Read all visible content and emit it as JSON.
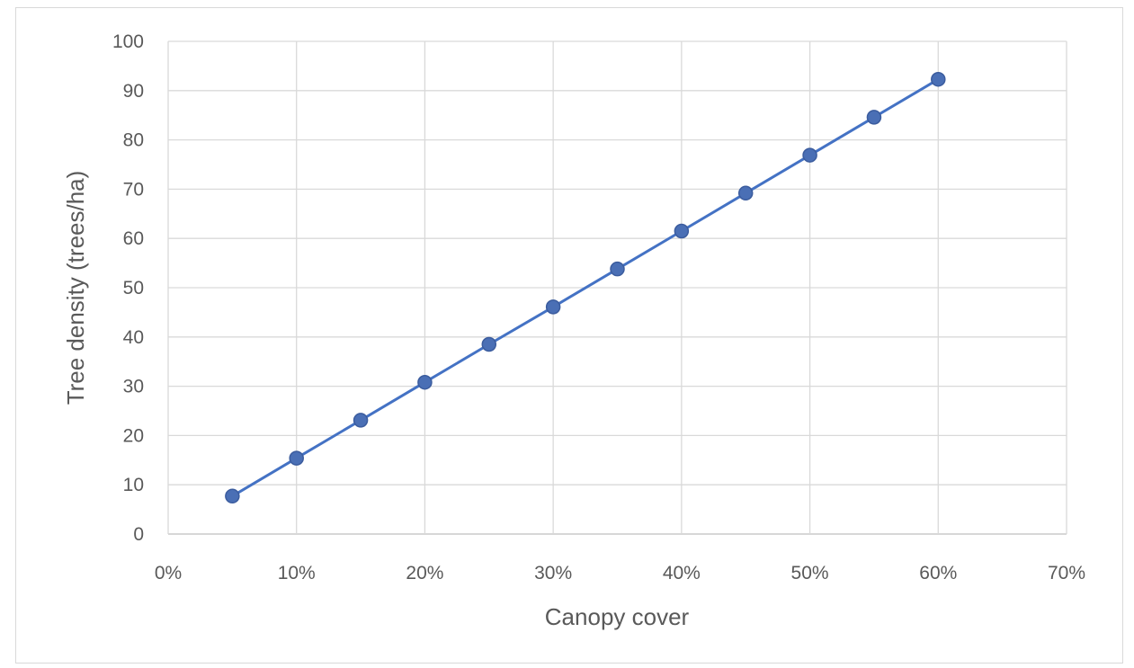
{
  "chart_data": {
    "type": "line",
    "title": "",
    "xlabel": "Canopy cover",
    "ylabel": "Tree density (trees/ha)",
    "xlim": [
      0,
      0.7
    ],
    "ylim": [
      0,
      100
    ],
    "x_ticks": [
      {
        "value": 0.0,
        "label": "0%"
      },
      {
        "value": 0.1,
        "label": "10%"
      },
      {
        "value": 0.2,
        "label": "20%"
      },
      {
        "value": 0.3,
        "label": "30%"
      },
      {
        "value": 0.4,
        "label": "40%"
      },
      {
        "value": 0.5,
        "label": "50%"
      },
      {
        "value": 0.6,
        "label": "60%"
      },
      {
        "value": 0.7,
        "label": "70%"
      }
    ],
    "y_ticks": [
      {
        "value": 0,
        "label": "0"
      },
      {
        "value": 10,
        "label": "10"
      },
      {
        "value": 20,
        "label": "20"
      },
      {
        "value": 30,
        "label": "30"
      },
      {
        "value": 40,
        "label": "40"
      },
      {
        "value": 50,
        "label": "50"
      },
      {
        "value": 60,
        "label": "60"
      },
      {
        "value": 70,
        "label": "70"
      },
      {
        "value": 80,
        "label": "80"
      },
      {
        "value": 90,
        "label": "90"
      },
      {
        "value": 100,
        "label": "100"
      }
    ],
    "grid": true,
    "legend": "none",
    "series": [
      {
        "color": "#4472c4",
        "marker_color": "#4a6fb5",
        "x": [
          0.05,
          0.1,
          0.15,
          0.2,
          0.25,
          0.3,
          0.35,
          0.4,
          0.45,
          0.5,
          0.55,
          0.6
        ],
        "y": [
          7.7,
          15.4,
          23.1,
          30.8,
          38.5,
          46.1,
          53.8,
          61.5,
          69.2,
          76.9,
          84.6,
          92.3
        ]
      }
    ]
  }
}
